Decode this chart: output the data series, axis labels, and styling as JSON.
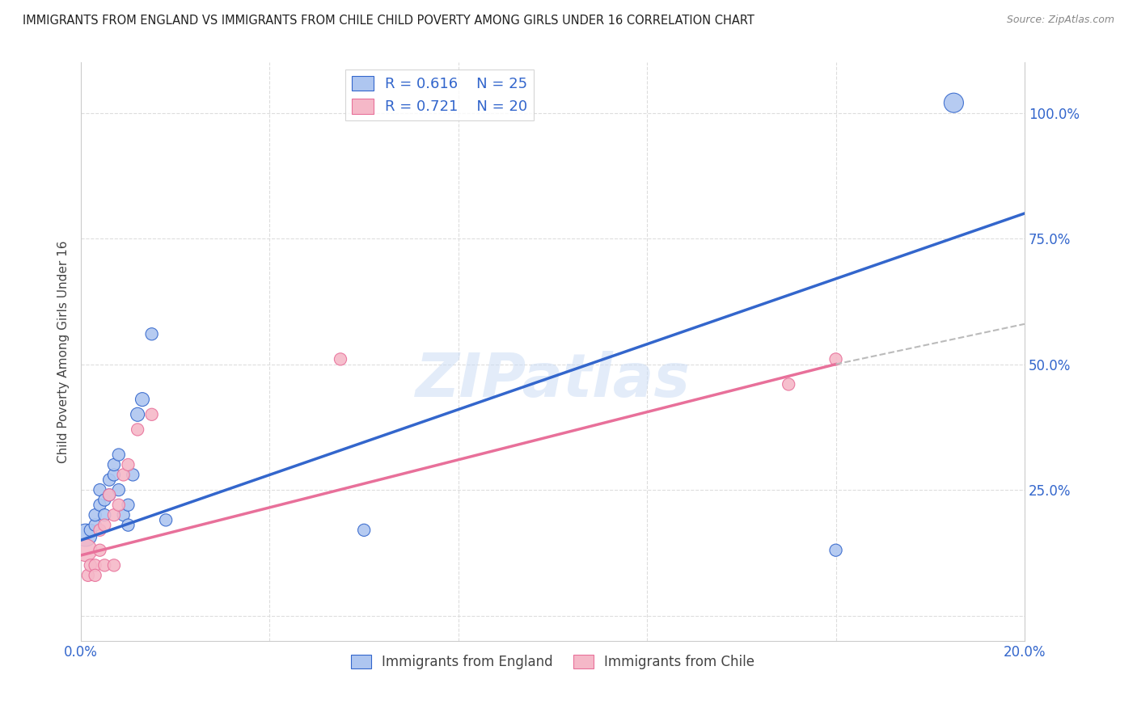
{
  "title": "IMMIGRANTS FROM ENGLAND VS IMMIGRANTS FROM CHILE CHILD POVERTY AMONG GIRLS UNDER 16 CORRELATION CHART",
  "source": "Source: ZipAtlas.com",
  "ylabel": "Child Poverty Among Girls Under 16",
  "legend_england": "Immigrants from England",
  "legend_chile": "Immigrants from Chile",
  "R_england": "0.616",
  "N_england": "25",
  "R_chile": "0.721",
  "N_chile": "20",
  "england_color": "#aec6f0",
  "chile_color": "#f5b8c8",
  "england_line_color": "#3366cc",
  "chile_line_color": "#e8709a",
  "watermark": "ZIPatlas",
  "england_x": [
    0.1,
    0.2,
    0.3,
    0.3,
    0.4,
    0.4,
    0.5,
    0.5,
    0.6,
    0.6,
    0.7,
    0.7,
    0.8,
    0.8,
    0.9,
    1.0,
    1.0,
    1.1,
    1.2,
    1.3,
    1.5,
    1.8,
    6.0,
    16.0,
    18.5
  ],
  "england_y": [
    16,
    17,
    18,
    20,
    22,
    25,
    20,
    23,
    24,
    27,
    28,
    30,
    25,
    32,
    20,
    22,
    18,
    28,
    40,
    43,
    56,
    19,
    17,
    13,
    102
  ],
  "england_size": [
    400,
    120,
    120,
    120,
    120,
    120,
    120,
    120,
    120,
    120,
    120,
    120,
    120,
    120,
    120,
    120,
    120,
    120,
    150,
    150,
    120,
    120,
    120,
    120,
    300
  ],
  "chile_x": [
    0.1,
    0.15,
    0.2,
    0.3,
    0.3,
    0.4,
    0.4,
    0.5,
    0.5,
    0.6,
    0.7,
    0.7,
    0.8,
    0.9,
    1.0,
    1.2,
    1.5,
    5.5,
    15.0,
    16.0
  ],
  "chile_y": [
    13,
    8,
    10,
    10,
    8,
    17,
    13,
    18,
    10,
    24,
    20,
    10,
    22,
    28,
    30,
    37,
    40,
    51,
    46,
    51
  ],
  "chile_size": [
    400,
    120,
    120,
    120,
    120,
    120,
    120,
    120,
    120,
    120,
    120,
    120,
    120,
    120,
    120,
    120,
    120,
    120,
    120,
    120
  ],
  "xmin": 0.0,
  "xmax": 20.0,
  "ymin": -5.0,
  "ymax": 110.0,
  "yticks": [
    0,
    25,
    50,
    75,
    100
  ],
  "ytick_labels": [
    "",
    "25.0%",
    "50.0%",
    "75.0%",
    "100.0%"
  ],
  "xticks": [
    0.0,
    4.0,
    8.0,
    12.0,
    16.0,
    20.0
  ],
  "xtick_labels": [
    "0.0%",
    "",
    "",
    "",
    "",
    "20.0%"
  ],
  "england_reg_x0": 0.0,
  "england_reg_x1": 20.0,
  "england_reg_y0": 15.0,
  "england_reg_y1": 80.0,
  "chile_reg_x0": 0.0,
  "chile_reg_x1": 16.0,
  "chile_reg_y0": 12.0,
  "chile_reg_y1": 50.0,
  "chile_dash_x0": 16.0,
  "chile_dash_x1": 20.0,
  "chile_dash_y0": 50.0,
  "chile_dash_y1": 58.0
}
